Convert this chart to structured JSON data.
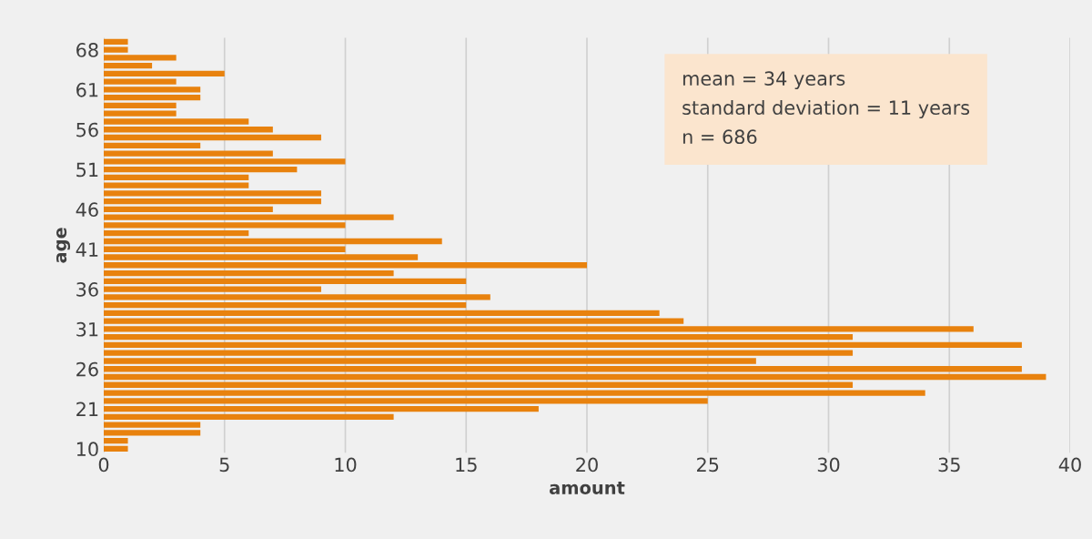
{
  "chart_data": {
    "type": "bar",
    "orientation": "horizontal",
    "xlabel": "amount",
    "ylabel": "age",
    "categories": [
      null,
      "68",
      null,
      null,
      null,
      null,
      "61",
      null,
      null,
      null,
      null,
      "56",
      null,
      null,
      null,
      null,
      "51",
      null,
      null,
      null,
      null,
      "46",
      null,
      null,
      null,
      null,
      "41",
      null,
      null,
      null,
      null,
      "36",
      null,
      null,
      null,
      null,
      "31",
      null,
      null,
      null,
      null,
      "26",
      null,
      null,
      null,
      null,
      "21",
      null,
      null,
      null,
      null,
      "10"
    ],
    "values": [
      1,
      1,
      3,
      2,
      5,
      3,
      4,
      4,
      3,
      3,
      6,
      7,
      9,
      4,
      7,
      10,
      8,
      6,
      6,
      9,
      9,
      7,
      12,
      10,
      6,
      14,
      10,
      13,
      20,
      12,
      15,
      9,
      16,
      15,
      23,
      24,
      36,
      31,
      38,
      31,
      27,
      38,
      39,
      31,
      34,
      25,
      18,
      12,
      4,
      4,
      1,
      1
    ],
    "color": "#e8820e",
    "xlim": [
      0,
      40
    ],
    "xticks": [
      0,
      5,
      10,
      15,
      20,
      25,
      30,
      35,
      40
    ],
    "grid": "x",
    "annotations": [
      "mean = 34 years",
      "standard deviation = 11 years",
      "n = 686"
    ]
  }
}
